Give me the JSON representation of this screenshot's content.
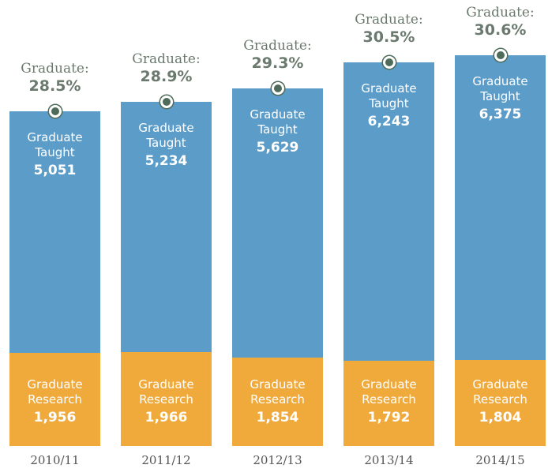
{
  "chart_data": {
    "type": "bar",
    "stacked": true,
    "categories": [
      "2010/11",
      "2011/12",
      "2012/13",
      "2013/14",
      "2014/15"
    ],
    "series": [
      {
        "name": "Graduate Research",
        "color": "#f0aa3c",
        "values": [
          1956,
          1966,
          1854,
          1792,
          1804
        ],
        "value_labels": [
          "1,956",
          "1,966",
          "1,854",
          "1,792",
          "1,804"
        ]
      },
      {
        "name": "Graduate Taught",
        "color": "#5b9cc9",
        "values": [
          5051,
          5234,
          5629,
          6243,
          6375
        ],
        "value_labels": [
          "5,051",
          "5,234",
          "5,629",
          "6,243",
          "6,375"
        ]
      }
    ],
    "annotation_label": "Graduate:",
    "annotations": {
      "values": [
        28.5,
        28.9,
        29.3,
        30.5,
        30.6
      ],
      "value_labels": [
        "28.5%",
        "28.9%",
        "29.3%",
        "30.5%",
        "30.6%"
      ]
    }
  }
}
